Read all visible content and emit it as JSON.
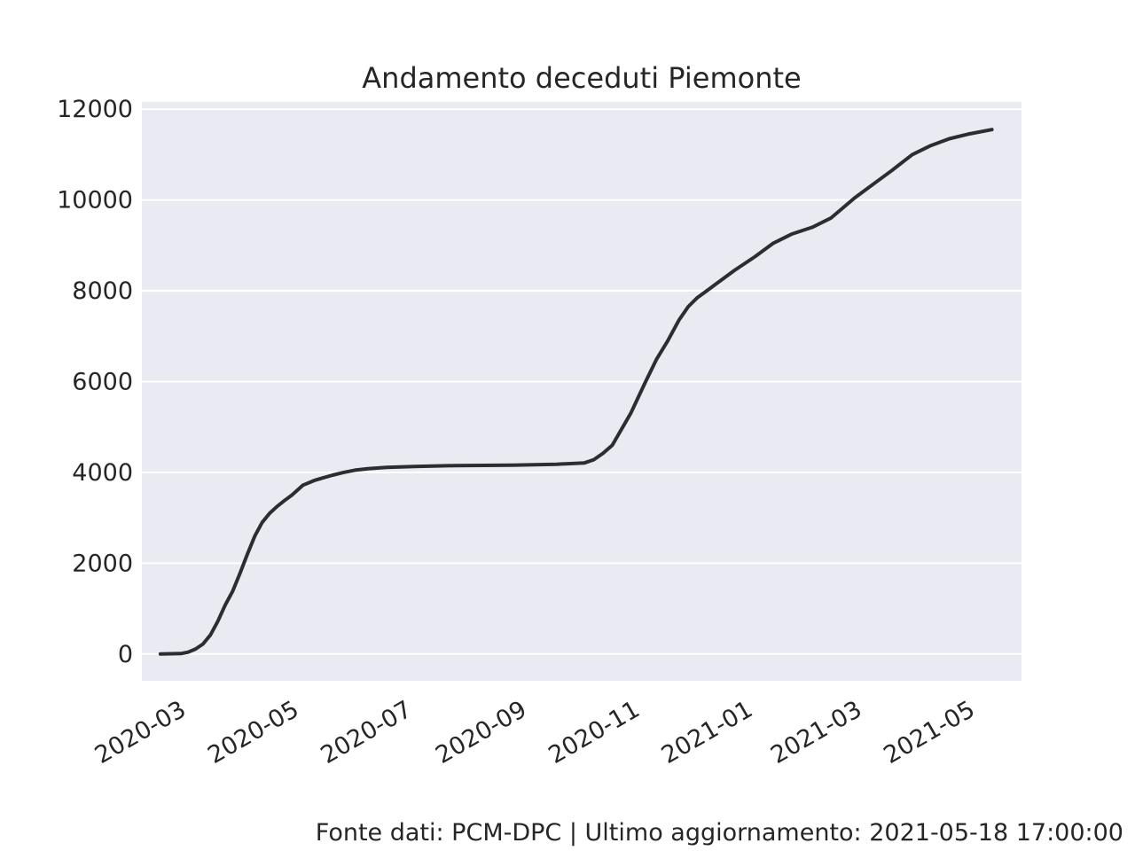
{
  "footer": {
    "source_text": "Fonte dati: PCM-DPC | Ultimo aggiornamento: 2021-05-18 17:00:00"
  },
  "chart_data": {
    "type": "line",
    "title": "Andamento deceduti Piemonte",
    "xlabel": "",
    "ylabel": "",
    "xlim": [
      "2020-02-14",
      "2021-06-03"
    ],
    "ylim": [
      -590,
      12160
    ],
    "x_ticks": [
      "2020-03",
      "2020-05",
      "2020-07",
      "2020-09",
      "2020-11",
      "2021-01",
      "2021-03",
      "2021-05"
    ],
    "y_ticks": [
      0,
      2000,
      4000,
      6000,
      8000,
      10000,
      12000
    ],
    "grid": true,
    "background": "#eaeaf2",
    "line_color": "#2b2d31",
    "series": [
      {
        "x": [
          "2020-02-24",
          "2020-03-06",
          "2020-03-10",
          "2020-03-14",
          "2020-03-18",
          "2020-03-22",
          "2020-03-26",
          "2020-03-30",
          "2020-04-03",
          "2020-04-07",
          "2020-04-11",
          "2020-04-15",
          "2020-04-19",
          "2020-04-23",
          "2020-04-27",
          "2020-05-01",
          "2020-05-05",
          "2020-05-11",
          "2020-05-17",
          "2020-05-21",
          "2020-05-27",
          "2020-06-02",
          "2020-06-08",
          "2020-06-15",
          "2020-06-25",
          "2020-07-10",
          "2020-08-01",
          "2020-09-01",
          "2020-09-25",
          "2020-10-10",
          "2020-10-15",
          "2020-10-20",
          "2020-10-25",
          "2020-10-30",
          "2020-11-04",
          "2020-11-08",
          "2020-11-12",
          "2020-11-18",
          "2020-11-24",
          "2020-11-30",
          "2020-12-05",
          "2020-12-10",
          "2020-12-15",
          "2020-12-20",
          "2020-12-30",
          "2021-01-10",
          "2021-01-20",
          "2021-01-30",
          "2021-02-10",
          "2021-02-20",
          "2021-03-05",
          "2021-03-15",
          "2021-03-25",
          "2021-04-05",
          "2021-04-15",
          "2021-04-25",
          "2021-05-05",
          "2021-05-18"
        ],
        "values": [
          0,
          10,
          40,
          110,
          220,
          420,
          720,
          1080,
          1380,
          1780,
          2200,
          2600,
          2900,
          3100,
          3250,
          3380,
          3500,
          3720,
          3820,
          3870,
          3940,
          4000,
          4050,
          4080,
          4110,
          4130,
          4150,
          4160,
          4180,
          4210,
          4280,
          4420,
          4600,
          4950,
          5300,
          5650,
          6000,
          6500,
          6900,
          7350,
          7650,
          7850,
          8000,
          8150,
          8450,
          8750,
          9050,
          9250,
          9400,
          9600,
          10050,
          10350,
          10650,
          11000,
          11200,
          11350,
          11450,
          11550
        ]
      }
    ]
  }
}
